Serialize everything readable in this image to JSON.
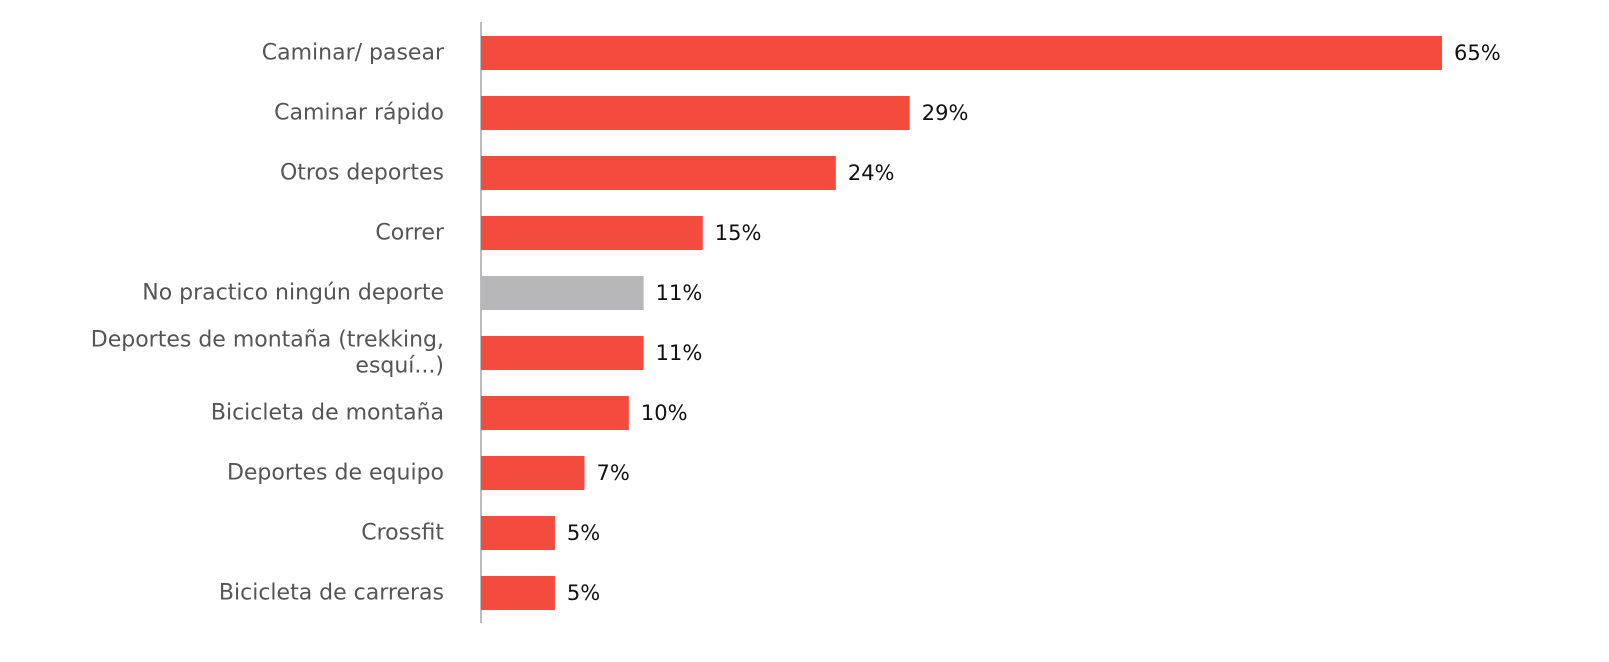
{
  "chart_data": {
    "type": "bar",
    "orientation": "horizontal",
    "categories": [
      [
        "Caminar/ pasear"
      ],
      [
        "Caminar rápido"
      ],
      [
        "Otros deportes"
      ],
      [
        "Correr"
      ],
      [
        "No practico ningún deporte"
      ],
      [
        "Deportes de montaña (trekking,",
        "esquí...)"
      ],
      [
        "Bicicleta de montaña"
      ],
      [
        "Deportes de equipo"
      ],
      [
        "Crossfit"
      ],
      [
        "Bicicleta de carreras"
      ]
    ],
    "values": [
      65,
      29,
      24,
      15,
      11,
      11,
      10,
      7,
      5,
      5
    ],
    "value_labels": [
      "65%",
      "29%",
      "24%",
      "15%",
      "11%",
      "11%",
      "10%",
      "7%",
      "5%",
      "5%"
    ],
    "bar_colors": [
      "#f44b3f",
      "#f44b3f",
      "#f44b3f",
      "#f44b3f",
      "#b7b7b9",
      "#f44b3f",
      "#f44b3f",
      "#f44b3f",
      "#f44b3f",
      "#f44b3f"
    ],
    "axis_color": "#a6a6a6",
    "xlim": [
      0,
      65
    ],
    "grid": false,
    "legend": "none",
    "title": "",
    "xlabel": "",
    "ylabel": ""
  }
}
